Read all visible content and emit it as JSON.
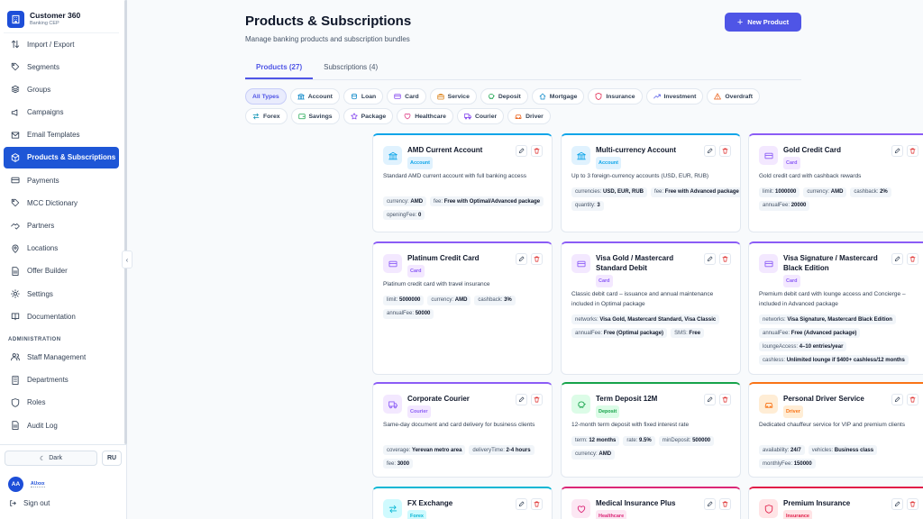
{
  "brand": {
    "title": "Customer 360",
    "subtitle": "Banking CEP"
  },
  "nav": [
    {
      "label": "Import / Export",
      "icon": "arrows-updown-icon"
    },
    {
      "label": "Segments",
      "icon": "tag-icon"
    },
    {
      "label": "Groups",
      "icon": "layers-icon"
    },
    {
      "label": "Campaigns",
      "icon": "megaphone-icon"
    },
    {
      "label": "Email Templates",
      "icon": "mail-icon"
    },
    {
      "label": "Products & Subscriptions",
      "icon": "package-icon",
      "active": true
    },
    {
      "label": "Payments",
      "icon": "credit-card-icon"
    },
    {
      "label": "MCC Dictionary",
      "icon": "tag-icon"
    },
    {
      "label": "Partners",
      "icon": "handshake-icon"
    },
    {
      "label": "Locations",
      "icon": "map-pin-icon"
    },
    {
      "label": "Offer Builder",
      "icon": "file-icon"
    },
    {
      "label": "Settings",
      "icon": "gear-icon"
    },
    {
      "label": "Documentation",
      "icon": "book-icon"
    }
  ],
  "admin_section": "ADMINISTRATION",
  "admin_nav": [
    {
      "label": "Staff Management",
      "icon": "users-icon"
    },
    {
      "label": "Departments",
      "icon": "building-icon"
    },
    {
      "label": "Roles",
      "icon": "shield-icon"
    },
    {
      "label": "Audit Log",
      "icon": "file-icon"
    }
  ],
  "footer": {
    "dark_label": "Dark",
    "lang_label": "RU",
    "avatar_initials": "AA",
    "user_label": "AUxxx",
    "signout_label": "Sign out"
  },
  "header": {
    "title": "Products & Subscriptions",
    "subtitle": "Manage banking products and subscription bundles",
    "new_button": "New Product"
  },
  "tabs": [
    {
      "label": "Products (27)",
      "active": true
    },
    {
      "label": "Subscriptions (4)",
      "active": false
    }
  ],
  "filters": [
    {
      "label": "All Types",
      "active": true,
      "icon": "",
      "color": "#4f55e6"
    },
    {
      "label": "Account",
      "icon": "bank-icon",
      "color": "#0284c7"
    },
    {
      "label": "Loan",
      "icon": "coins-icon",
      "color": "#0284c7"
    },
    {
      "label": "Card",
      "icon": "credit-card-icon",
      "color": "#7c3aed"
    },
    {
      "label": "Service",
      "icon": "briefcase-icon",
      "color": "#d97706"
    },
    {
      "label": "Deposit",
      "icon": "piggy-bank-icon",
      "color": "#16a34a"
    },
    {
      "label": "Mortgage",
      "icon": "home-icon",
      "color": "#0284c7"
    },
    {
      "label": "Insurance",
      "icon": "shield-icon",
      "color": "#e11d48"
    },
    {
      "label": "Investment",
      "icon": "trending-up-icon",
      "color": "#4f55e6"
    },
    {
      "label": "Overdraft",
      "icon": "warning-icon",
      "color": "#ea580c"
    },
    {
      "label": "Forex",
      "icon": "exchange-icon",
      "color": "#0891b2"
    },
    {
      "label": "Savings",
      "icon": "wallet-icon",
      "color": "#16a34a"
    },
    {
      "label": "Package",
      "icon": "star-icon",
      "color": "#7c3aed"
    },
    {
      "label": "Healthcare",
      "icon": "heart-icon",
      "color": "#db2777"
    },
    {
      "label": "Courier",
      "icon": "truck-icon",
      "color": "#7c3aed"
    },
    {
      "label": "Driver",
      "icon": "car-icon",
      "color": "#ea580c"
    }
  ],
  "cards": [
    {
      "name": "AMD Current Account",
      "badge": "Account",
      "icon": "bank-icon",
      "color": "#0ea5e9",
      "tint": "#e0f2fe",
      "desc": "Standard AMD current account with full banking access",
      "tags": [
        {
          "k": "currency:",
          "v": "AMD"
        },
        {
          "k": "fee:",
          "v": "Free with Optimal/Advanced package"
        },
        {
          "k": "openingFee:",
          "v": "0"
        }
      ]
    },
    {
      "name": "Multi-currency Account",
      "badge": "Account",
      "icon": "bank-icon",
      "color": "#0ea5e9",
      "tint": "#e0f2fe",
      "desc": "Up to 3 foreign-currency accounts (USD, EUR, RUB)",
      "tags": [
        {
          "k": "currencies:",
          "v": "USD, EUR, RUB"
        },
        {
          "k": "fee:",
          "v": "Free with Advanced package"
        },
        {
          "k": "quantity:",
          "v": "3"
        }
      ]
    },
    {
      "name": "Gold Credit Card",
      "badge": "Card",
      "icon": "credit-card-icon",
      "color": "#8b5cf6",
      "tint": "#f3e8ff",
      "desc": "Gold credit card with cashback rewards",
      "tags": [
        {
          "k": "limit:",
          "v": "1000000"
        },
        {
          "k": "currency:",
          "v": "AMD"
        },
        {
          "k": "cashback:",
          "v": "2%"
        },
        {
          "k": "annualFee:",
          "v": "20000"
        }
      ]
    },
    {
      "name": "Platinum Credit Card",
      "badge": "Card",
      "icon": "credit-card-icon",
      "color": "#8b5cf6",
      "tint": "#f3e8ff",
      "desc": "Platinum credit card with travel insurance",
      "tags": [
        {
          "k": "limit:",
          "v": "5000000"
        },
        {
          "k": "currency:",
          "v": "AMD"
        },
        {
          "k": "cashback:",
          "v": "3%"
        },
        {
          "k": "annualFee:",
          "v": "50000"
        }
      ]
    },
    {
      "name": "Visa Gold / Mastercard Standard Debit",
      "badge": "Card",
      "icon": "credit-card-icon",
      "color": "#8b5cf6",
      "tint": "#f3e8ff",
      "desc": "Classic debit card – issuance and annual maintenance included in Optimal package",
      "tags": [
        {
          "k": "networks:",
          "v": "Visa Gold, Mastercard Standard, Visa Classic"
        },
        {
          "k": "annualFee:",
          "v": "Free (Optimal package)"
        },
        {
          "k": "SMS:",
          "v": "Free"
        }
      ]
    },
    {
      "name": "Visa Signature / Mastercard Black Edition",
      "badge": "Card",
      "icon": "credit-card-icon",
      "color": "#8b5cf6",
      "tint": "#f3e8ff",
      "desc": "Premium debit card with lounge access and Concierge – included in Advanced package",
      "tags": [
        {
          "k": "networks:",
          "v": "Visa Signature, Mastercard Black Edition"
        },
        {
          "k": "annualFee:",
          "v": "Free (Advanced package)"
        },
        {
          "k": "loungeAccess:",
          "v": "4–10 entries/year"
        },
        {
          "k": "cashless:",
          "v": "Unlimited lounge if $400+ cashless/12 months"
        }
      ]
    },
    {
      "name": "Corporate Courier",
      "badge": "Courier",
      "icon": "truck-icon",
      "color": "#8b5cf6",
      "tint": "#f3e8ff",
      "desc": "Same-day document and card delivery for business clients",
      "tags": [
        {
          "k": "coverage:",
          "v": "Yerevan metro area"
        },
        {
          "k": "deliveryTime:",
          "v": "2-4 hours"
        },
        {
          "k": "fee:",
          "v": "3000"
        }
      ]
    },
    {
      "name": "Term Deposit 12M",
      "badge": "Deposit",
      "icon": "piggy-bank-icon",
      "color": "#16a34a",
      "tint": "#dcfce7",
      "desc": "12-month term deposit with fixed interest rate",
      "tags": [
        {
          "k": "term:",
          "v": "12 months"
        },
        {
          "k": "rate:",
          "v": "9.5%"
        },
        {
          "k": "minDeposit:",
          "v": "500000"
        },
        {
          "k": "currency:",
          "v": "AMD"
        }
      ]
    },
    {
      "name": "Personal Driver Service",
      "badge": "Driver",
      "icon": "car-icon",
      "color": "#f97316",
      "tint": "#ffedd5",
      "desc": "Dedicated chauffeur service for VIP and premium clients",
      "tags": [
        {
          "k": "availability:",
          "v": "24/7"
        },
        {
          "k": "vehicles:",
          "v": "Business class"
        },
        {
          "k": "monthlyFee:",
          "v": "150000"
        }
      ]
    },
    {
      "name": "FX Exchange",
      "badge": "Forex",
      "icon": "exchange-icon",
      "color": "#06b6d4",
      "tint": "#cffafe",
      "desc": "",
      "tags": []
    },
    {
      "name": "Medical Insurance Plus",
      "badge": "Healthcare",
      "icon": "heart-icon",
      "color": "#db2777",
      "tint": "#fce7f3",
      "desc": "",
      "tags": []
    },
    {
      "name": "Premium Insurance",
      "badge": "Insurance",
      "icon": "shield-icon",
      "color": "#e11d48",
      "tint": "#ffe4e6",
      "desc": "",
      "tags": []
    }
  ]
}
